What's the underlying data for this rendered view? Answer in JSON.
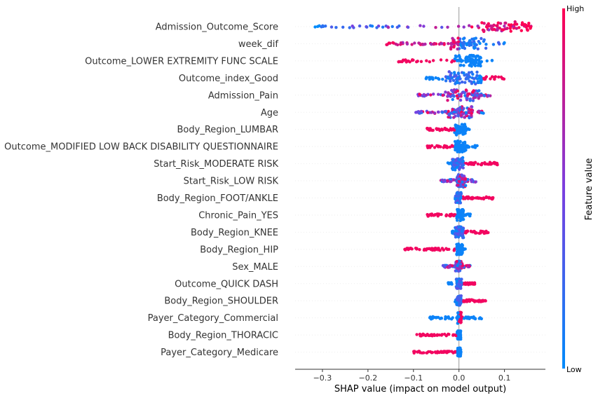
{
  "chart_data": {
    "type": "scatter",
    "subtype": "shap-beeswarm",
    "title": "",
    "xlabel": "SHAP value (impact on model output)",
    "xlim": [
      -0.36,
      0.19
    ],
    "x_ticks": [
      -0.3,
      -0.2,
      -0.1,
      0.0,
      0.1
    ],
    "x_tick_labels": [
      "−0.3",
      "−0.2",
      "−0.1",
      "0.0",
      "0.1"
    ],
    "colorbar": {
      "label": "Feature value",
      "high": "High",
      "low": "Low",
      "color_low": "#008bfb",
      "color_high": "#ff0052"
    },
    "features": [
      {
        "name": "Admission_Outcome_Score",
        "min": -0.33,
        "max": 0.165,
        "core_low": 0.05,
        "core_high": 0.16,
        "spread": 7,
        "colors": "high_right"
      },
      {
        "name": "week_dif",
        "min": -0.16,
        "max": 0.1,
        "core_low": -0.02,
        "core_high": 0.06,
        "spread": 8,
        "colors": "high_left"
      },
      {
        "name": "Outcome_LOWER EXTREMITY FUNC SCALE",
        "min": -0.135,
        "max": 0.085,
        "core_low": -0.01,
        "core_high": 0.05,
        "spread": 8,
        "colors": "high_left"
      },
      {
        "name": "Outcome_index_Good",
        "min": -0.075,
        "max": 0.1,
        "core_low": -0.03,
        "core_high": 0.05,
        "spread": 9,
        "colors": "high_right"
      },
      {
        "name": "Admission_Pain",
        "min": -0.09,
        "max": 0.07,
        "core_low": -0.03,
        "core_high": 0.045,
        "spread": 8,
        "colors": "mixed"
      },
      {
        "name": "Age",
        "min": -0.095,
        "max": 0.055,
        "core_low": -0.03,
        "core_high": 0.03,
        "spread": 8,
        "colors": "mixed"
      },
      {
        "name": "Body_Region_LUMBAR",
        "min": -0.07,
        "max": 0.025,
        "core_low": -0.01,
        "core_high": 0.015,
        "spread": 8,
        "colors": "high_left"
      },
      {
        "name": "Outcome_MODIFIED LOW BACK DISABILITY QUESTIONNAIRE",
        "min": -0.07,
        "max": 0.04,
        "core_low": -0.01,
        "core_high": 0.015,
        "spread": 8,
        "colors": "high_left"
      },
      {
        "name": "Start_Risk_MODERATE RISK",
        "min": -0.025,
        "max": 0.085,
        "core_low": -0.015,
        "core_high": 0.01,
        "spread": 9,
        "colors": "high_right"
      },
      {
        "name": "Start_Risk_LOW RISK",
        "min": -0.04,
        "max": 0.04,
        "core_low": -0.005,
        "core_high": 0.015,
        "spread": 9,
        "colors": "mixed"
      },
      {
        "name": "Body_Region_FOOT/ANKLE",
        "min": -0.01,
        "max": 0.075,
        "core_low": -0.008,
        "core_high": 0.005,
        "spread": 8,
        "colors": "high_right"
      },
      {
        "name": "Chronic_Pain_YES",
        "min": -0.07,
        "max": 0.025,
        "core_low": -0.005,
        "core_high": 0.01,
        "spread": 8,
        "colors": "high_left"
      },
      {
        "name": "Body_Region_KNEE",
        "min": -0.02,
        "max": 0.065,
        "core_low": -0.01,
        "core_high": 0.01,
        "spread": 8,
        "colors": "high_right"
      },
      {
        "name": "Body_Region_HIP",
        "min": -0.12,
        "max": 0.015,
        "core_low": -0.005,
        "core_high": 0.008,
        "spread": 8,
        "colors": "high_left"
      },
      {
        "name": "Sex_MALE",
        "min": -0.035,
        "max": 0.025,
        "core_low": -0.008,
        "core_high": 0.008,
        "spread": 8,
        "colors": "mixed"
      },
      {
        "name": "Outcome_QUICK DASH",
        "min": -0.025,
        "max": 0.035,
        "core_low": -0.006,
        "core_high": 0.006,
        "spread": 7,
        "colors": "high_right"
      },
      {
        "name": "Body_Region_SHOULDER",
        "min": -0.01,
        "max": 0.06,
        "core_low": -0.005,
        "core_high": 0.005,
        "spread": 7,
        "colors": "high_right"
      },
      {
        "name": "Payer_Category_Commercial",
        "min": -0.065,
        "max": 0.05,
        "core_low": -0.003,
        "core_high": 0.005,
        "spread": 8,
        "colors": "high_right_narrow"
      },
      {
        "name": "Body_Region_THORACIC",
        "min": -0.095,
        "max": 0.005,
        "core_low": -0.004,
        "core_high": 0.004,
        "spread": 6,
        "colors": "high_left"
      },
      {
        "name": "Payer_Category_Medicare",
        "min": -0.1,
        "max": 0.005,
        "core_low": -0.003,
        "core_high": 0.004,
        "spread": 6,
        "colors": "high_left"
      }
    ]
  }
}
